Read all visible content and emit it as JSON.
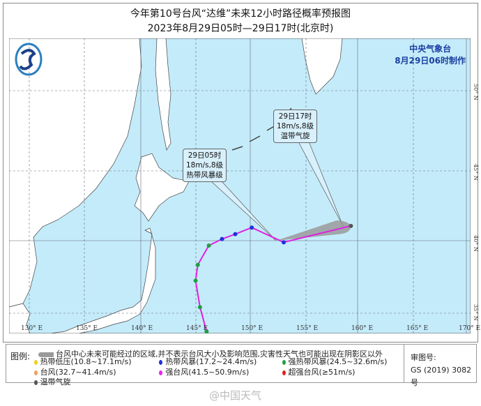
{
  "header": {
    "title": "今年第10号台风“达维”未来12小时路径概率预报图",
    "subtitle": "2023年8月29日05时—29日17时(北京时)"
  },
  "org": {
    "name": "中央气象台",
    "made": "8月29日06时制作"
  },
  "callouts": [
    {
      "time": "29日05时",
      "wind": "18m/s,8级",
      "level": "热带风暴级"
    },
    {
      "time": "29日17时",
      "wind": "18m/s,8级",
      "level": "温带气旋"
    }
  ],
  "axes": {
    "lon_labels": [
      "130° E",
      "135° E",
      "140° E",
      "145° E",
      "150° E",
      "155° E",
      "160° E",
      "165° E",
      "170° E"
    ],
    "lat_labels": [
      "50° N",
      "45° N",
      "40° N",
      "35° N"
    ]
  },
  "track": {
    "past_color": "#e020e0",
    "points": [
      {
        "lon": 146.1,
        "lat": 34.2,
        "cat": "strong_tropical_storm"
      },
      {
        "lon": 145.5,
        "lat": 35.8,
        "cat": "strong_tropical_storm"
      },
      {
        "lon": 145.1,
        "lat": 37.5,
        "cat": "strong_tropical_storm"
      },
      {
        "lon": 145.3,
        "lat": 38.5,
        "cat": "strong_tropical_storm"
      },
      {
        "lon": 146.3,
        "lat": 39.7,
        "cat": "strong_tropical_storm"
      },
      {
        "lon": 147.5,
        "lat": 40.1,
        "cat": "tropical_storm"
      },
      {
        "lon": 148.7,
        "lat": 40.4,
        "cat": "tropical_storm"
      },
      {
        "lon": 150.2,
        "lat": 40.8,
        "cat": "tropical_storm"
      },
      {
        "lon": 153.1,
        "lat": 39.9,
        "cat": "tropical_storm"
      }
    ],
    "forecast": [
      {
        "lon": 159.2,
        "lat": 40.9,
        "cat": "extratropical"
      }
    ],
    "cone_color": "#9a9a9a"
  },
  "legend": {
    "title": "图例:",
    "cone_text": "台风中心未来可能经过的区域,并不表示台风大小及影响范围,灾害性天气也可能出现在阴影区以外",
    "items": [
      {
        "label": "热带低压(10.8~17.1m/s)",
        "color": "#f0d020"
      },
      {
        "label": "热带风暴(17.2~24.4m/s)",
        "color": "#2030e0"
      },
      {
        "label": "强热带风暴(24.5~32.6m/s)",
        "color": "#20a040"
      },
      {
        "label": "台风(32.7~41.4m/s)",
        "color": "#f0a060"
      },
      {
        "label": "强台风(41.5~50.9m/s)",
        "color": "#f020f0"
      },
      {
        "label": "超强台风(≥51m/s)",
        "color": "#e02020"
      },
      {
        "label": "温带气旋",
        "color": "#555555"
      }
    ],
    "approval_label": "审图号:",
    "approval_no": "GS (2019) 3082号"
  },
  "watermark": "@中国天气",
  "colors": {
    "sea": "#c4ebfa",
    "land": "#ffffff",
    "org": "#1a3fa0"
  }
}
